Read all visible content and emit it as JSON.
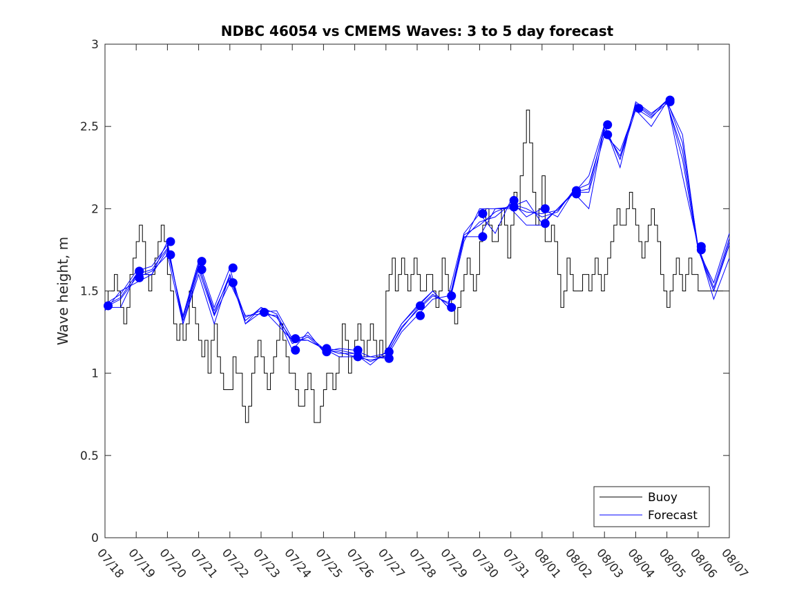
{
  "chart_data": {
    "type": "line",
    "title": "NDBC 46054 vs CMEMS Waves: 3 to 5 day forecast",
    "ylabel": "Wave height, m",
    "xlabel": "",
    "ylim": [
      0,
      3
    ],
    "yticks": [
      0,
      0.5,
      1,
      1.5,
      2,
      2.5,
      3
    ],
    "ytick_labels": [
      "0",
      "0.5",
      "1",
      "1.5",
      "2",
      "2.5",
      "3"
    ],
    "xlim": [
      0,
      20
    ],
    "xtick_labels": [
      "07/18",
      "07/19",
      "07/20",
      "07/21",
      "07/22",
      "07/23",
      "07/24",
      "07/25",
      "07/26",
      "07/27",
      "07/28",
      "07/29",
      "07/30",
      "07/31",
      "08/01",
      "08/02",
      "08/03",
      "08/04",
      "08/05",
      "08/06",
      "08/07"
    ],
    "grid": false,
    "legend": {
      "position": "bottom-right",
      "entries": [
        "Buoy",
        "Forecast"
      ]
    },
    "colors": {
      "buoy": "#000000",
      "forecast": "#0000ff"
    },
    "series": [
      {
        "name": "Buoy",
        "x": [
          0,
          0.1,
          0.2,
          0.3,
          0.4,
          0.5,
          0.6,
          0.7,
          0.8,
          0.9,
          1.0,
          1.1,
          1.2,
          1.3,
          1.4,
          1.5,
          1.6,
          1.7,
          1.8,
          1.9,
          2.0,
          2.1,
          2.2,
          2.3,
          2.4,
          2.5,
          2.6,
          2.7,
          2.8,
          2.9,
          3.0,
          3.1,
          3.2,
          3.3,
          3.4,
          3.5,
          3.6,
          3.7,
          3.8,
          3.9,
          4.0,
          4.1,
          4.2,
          4.3,
          4.4,
          4.5,
          4.6,
          4.7,
          4.8,
          4.9,
          5.0,
          5.1,
          5.2,
          5.3,
          5.4,
          5.5,
          5.6,
          5.7,
          5.8,
          5.9,
          6.0,
          6.1,
          6.2,
          6.3,
          6.4,
          6.5,
          6.6,
          6.7,
          6.8,
          6.9,
          7.0,
          7.1,
          7.2,
          7.3,
          7.4,
          7.5,
          7.6,
          7.7,
          7.8,
          7.9,
          8.0,
          8.1,
          8.2,
          8.3,
          8.4,
          8.5,
          8.6,
          8.7,
          8.8,
          8.9,
          9.0,
          9.1,
          9.2,
          9.3,
          9.4,
          9.5,
          9.6,
          9.7,
          9.8,
          9.9,
          10.0,
          10.1,
          10.2,
          10.3,
          10.4,
          10.5,
          10.6,
          10.7,
          10.8,
          10.9,
          11.0,
          11.1,
          11.2,
          11.3,
          11.4,
          11.5,
          11.6,
          11.7,
          11.8,
          11.9,
          12.0,
          12.1,
          12.2,
          12.3,
          12.4,
          12.5,
          12.6,
          12.7,
          12.8,
          12.9,
          13.0,
          13.1,
          13.2,
          13.3,
          13.4,
          13.5,
          13.6,
          13.7,
          13.8,
          13.9,
          14.0,
          14.1,
          14.2,
          14.3,
          14.4,
          14.5,
          14.6,
          14.7,
          14.8,
          14.9,
          15.0,
          15.1,
          15.2,
          15.3,
          15.4,
          15.5,
          15.6,
          15.7,
          15.8,
          15.9,
          16.0,
          16.1,
          16.2,
          16.3,
          16.4,
          16.5,
          16.6,
          16.7,
          16.8,
          16.9,
          17.0,
          17.1,
          17.2,
          17.3,
          17.4,
          17.5,
          17.6,
          17.7,
          17.8,
          17.9,
          18.0,
          18.1,
          18.2,
          18.3,
          18.4,
          18.5,
          18.6,
          18.7,
          18.8,
          18.9,
          19.0,
          19.1,
          19.2,
          19.3,
          19.4,
          19.5,
          19.6,
          19.7,
          19.8,
          19.9,
          20.0
        ],
        "values": [
          1.4,
          1.5,
          1.5,
          1.6,
          1.5,
          1.4,
          1.3,
          1.4,
          1.6,
          1.7,
          1.8,
          1.9,
          1.8,
          1.6,
          1.5,
          1.6,
          1.7,
          1.8,
          1.9,
          1.8,
          1.6,
          1.5,
          1.3,
          1.2,
          1.3,
          1.2,
          1.3,
          1.5,
          1.4,
          1.3,
          1.2,
          1.1,
          1.2,
          1.0,
          1.2,
          1.3,
          1.1,
          1.0,
          0.9,
          0.9,
          0.9,
          1.1,
          1.0,
          1.0,
          0.8,
          0.7,
          0.8,
          1.0,
          1.1,
          1.2,
          1.1,
          1.0,
          0.9,
          1.0,
          1.1,
          1.2,
          1.3,
          1.2,
          1.1,
          1.0,
          1.0,
          0.9,
          0.8,
          0.8,
          0.9,
          1.0,
          0.9,
          0.7,
          0.7,
          0.8,
          0.9,
          1.0,
          1.0,
          0.9,
          1.0,
          1.1,
          1.3,
          1.2,
          1.0,
          1.1,
          1.2,
          1.3,
          1.2,
          1.1,
          1.2,
          1.3,
          1.2,
          1.1,
          1.2,
          1.1,
          1.5,
          1.6,
          1.7,
          1.5,
          1.6,
          1.7,
          1.6,
          1.5,
          1.6,
          1.7,
          1.6,
          1.5,
          1.5,
          1.6,
          1.6,
          1.5,
          1.4,
          1.5,
          1.7,
          1.6,
          1.5,
          1.4,
          1.3,
          1.4,
          1.5,
          1.6,
          1.7,
          1.6,
          1.5,
          1.6,
          1.8,
          1.9,
          2.0,
          1.9,
          1.8,
          1.8,
          1.9,
          2.0,
          1.9,
          1.7,
          1.9,
          2.1,
          2.0,
          2.2,
          2.4,
          2.6,
          2.4,
          2.1,
          1.9,
          2.0,
          2.2,
          1.8,
          1.8,
          1.9,
          1.8,
          1.6,
          1.4,
          1.5,
          1.7,
          1.6,
          1.5,
          1.5,
          1.5,
          1.6,
          1.6,
          1.5,
          1.6,
          1.7,
          1.6,
          1.5,
          1.6,
          1.7,
          1.8,
          1.9,
          2.0,
          1.9,
          1.9,
          2.0,
          2.1,
          2.0,
          1.9,
          1.8,
          1.7,
          1.8,
          1.9,
          2.0,
          1.9,
          1.8,
          1.6,
          1.5,
          1.4,
          1.5,
          1.6,
          1.7,
          1.6,
          1.5,
          1.6,
          1.7,
          1.6,
          1.6,
          1.5,
          1.5,
          1.5,
          1.5,
          1.5,
          1.5,
          1.5,
          1.5,
          1.5,
          1.5,
          1.5
        ]
      },
      {
        "name": "Forecast",
        "x": [
          0,
          0.5,
          1,
          1.5,
          2,
          2.5,
          3,
          3.5,
          4,
          4.5,
          5,
          5.5,
          6,
          6.5,
          7,
          7.5,
          8,
          8.5,
          9,
          9.5,
          10,
          10.5,
          11,
          11.5,
          12,
          12.5,
          13,
          13.5,
          14,
          14.5,
          15,
          15.5,
          16,
          16.5,
          17,
          17.5,
          18,
          18.5,
          19,
          19.5,
          20
        ],
        "values": [
          1.4,
          1.4,
          1.6,
          1.6,
          1.8,
          1.3,
          1.6,
          1.3,
          1.6,
          1.3,
          1.4,
          1.3,
          1.2,
          1.2,
          1.15,
          1.1,
          1.1,
          1.1,
          1.12,
          1.3,
          1.4,
          1.5,
          1.4,
          1.8,
          2.0,
          2.0,
          2.0,
          1.9,
          1.9,
          2.0,
          2.1,
          2.0,
          2.5,
          2.3,
          2.6,
          2.5,
          2.65,
          2.3,
          1.75,
          1.5,
          1.8
        ]
      },
      {
        "x": [
          0,
          0.5,
          1,
          1.5,
          2,
          2.5,
          3,
          3.5,
          4,
          4.5,
          5,
          5.5,
          6,
          6.5,
          7,
          7.5,
          8,
          8.5,
          9,
          9.5,
          10,
          10.5,
          11,
          11.5,
          12,
          12.5,
          13,
          13.5,
          14,
          14.5,
          15,
          15.5,
          16,
          16.5,
          17,
          17.5,
          18,
          18.5,
          19,
          19.5,
          20
        ],
        "values": [
          1.4,
          1.45,
          1.58,
          1.62,
          1.72,
          1.3,
          1.63,
          1.35,
          1.55,
          1.35,
          1.36,
          1.35,
          1.14,
          1.25,
          1.13,
          1.15,
          1.14,
          1.1,
          1.09,
          1.25,
          1.35,
          1.45,
          1.47,
          1.85,
          1.97,
          1.85,
          2.05,
          1.95,
          2.0,
          1.95,
          2.1,
          2.1,
          2.45,
          2.35,
          2.61,
          2.55,
          2.66,
          2.2,
          1.77,
          1.45,
          1.7
        ]
      },
      {
        "x": [
          0,
          0.5,
          1,
          1.5,
          2,
          2.5,
          3,
          3.5,
          4,
          4.5,
          5,
          5.5,
          6,
          6.5,
          7,
          7.5,
          8,
          8.5,
          9,
          9.5,
          10,
          10.5,
          11,
          11.5,
          12,
          12.5,
          13,
          13.5,
          14,
          14.5,
          15,
          15.5,
          16,
          16.5,
          17,
          17.5,
          18,
          18.5,
          19,
          19.5,
          20
        ],
        "values": [
          1.38,
          1.5,
          1.55,
          1.6,
          1.75,
          1.35,
          1.68,
          1.4,
          1.64,
          1.3,
          1.37,
          1.38,
          1.21,
          1.2,
          1.15,
          1.12,
          1.12,
          1.05,
          1.13,
          1.3,
          1.41,
          1.5,
          1.4,
          1.83,
          1.83,
          2.0,
          2.01,
          2.05,
          1.91,
          2.0,
          2.09,
          2.2,
          2.51,
          2.25,
          2.65,
          2.58,
          2.65,
          2.45,
          1.75,
          1.55,
          1.85
        ]
      },
      {
        "x": [
          0,
          0.5,
          1,
          1.5,
          2,
          2.5,
          3,
          3.5,
          4,
          4.5,
          5,
          5.5,
          6,
          6.5,
          7,
          7.5,
          8,
          8.5,
          9,
          9.5,
          10,
          10.5,
          11,
          11.5,
          12,
          12.5,
          13,
          13.5,
          14,
          14.5,
          15,
          15.5,
          16,
          16.5,
          17,
          17.5,
          18,
          18.5,
          19,
          19.5,
          20
        ],
        "values": [
          1.42,
          1.48,
          1.62,
          1.65,
          1.78,
          1.32,
          1.65,
          1.38,
          1.58,
          1.32,
          1.4,
          1.36,
          1.18,
          1.22,
          1.14,
          1.13,
          1.1,
          1.08,
          1.1,
          1.28,
          1.38,
          1.47,
          1.43,
          1.82,
          1.92,
          1.95,
          2.03,
          2.0,
          1.95,
          1.98,
          2.11,
          2.15,
          2.48,
          2.32,
          2.63,
          2.56,
          2.64,
          2.35,
          1.76,
          1.5,
          1.78
        ]
      },
      {
        "x": [
          0,
          0.5,
          1,
          1.5,
          2,
          2.5,
          3,
          3.5,
          4,
          4.5,
          5,
          5.5,
          6,
          6.5,
          7,
          7.5,
          8,
          8.5,
          9,
          9.5,
          10,
          10.5,
          11,
          11.5,
          12,
          12.5,
          13,
          13.5,
          14,
          14.5,
          15,
          15.5,
          16,
          16.5,
          17,
          17.5,
          18,
          18.5,
          19,
          19.5,
          20
        ],
        "values": [
          1.41,
          1.46,
          1.6,
          1.63,
          1.76,
          1.34,
          1.66,
          1.36,
          1.6,
          1.34,
          1.38,
          1.34,
          1.2,
          1.23,
          1.15,
          1.14,
          1.12,
          1.07,
          1.11,
          1.27,
          1.39,
          1.48,
          1.42,
          1.84,
          1.9,
          1.98,
          2.02,
          1.98,
          1.97,
          1.99,
          2.1,
          2.12,
          2.5,
          2.3,
          2.64,
          2.57,
          2.66,
          2.4,
          1.77,
          1.52,
          1.82
        ]
      }
    ],
    "forecast_points": {
      "x": [
        0.1,
        1.1,
        1.1,
        2.1,
        2.1,
        3.1,
        3.1,
        4.1,
        4.1,
        5.1,
        6.1,
        6.1,
        7.1,
        7.1,
        8.1,
        8.1,
        9.1,
        9.1,
        10.1,
        10.1,
        11.1,
        11.1,
        12.1,
        12.1,
        13.1,
        13.1,
        14.1,
        14.1,
        15.1,
        15.1,
        16.1,
        16.1,
        17.1,
        18.1,
        18.1,
        19.1,
        19.1
      ],
      "values": [
        1.41,
        1.62,
        1.58,
        1.8,
        1.72,
        1.68,
        1.63,
        1.64,
        1.55,
        1.37,
        1.21,
        1.14,
        1.15,
        1.13,
        1.14,
        1.1,
        1.13,
        1.09,
        1.41,
        1.35,
        1.47,
        1.4,
        1.97,
        1.83,
        2.05,
        2.01,
        2.0,
        1.91,
        2.11,
        2.09,
        2.51,
        2.45,
        2.61,
        2.66,
        2.65,
        1.77,
        1.75
      ]
    }
  }
}
